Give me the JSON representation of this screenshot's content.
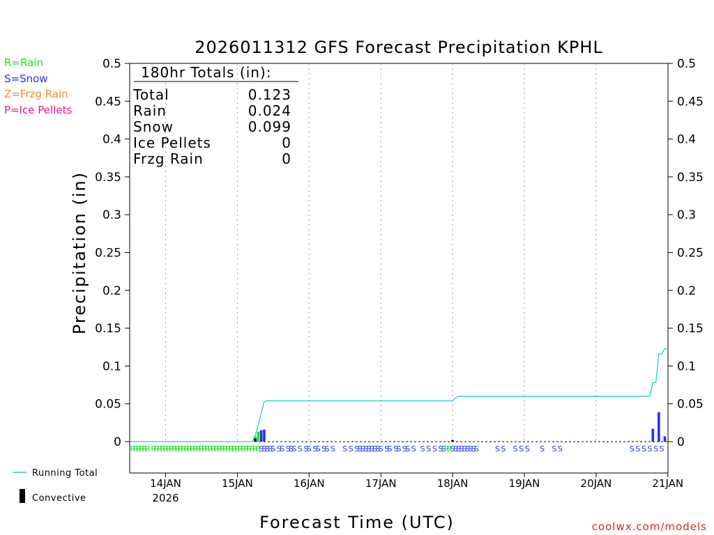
{
  "chart_data": {
    "type": "line",
    "title": "2026011312 GFS Forecast Precipitation KPHL",
    "ylabel": "Precipitation (in)",
    "xlabel": "Forecast Time (UTC)",
    "ylim": [
      0,
      0.5
    ],
    "y_ticks": [
      "0",
      "0.05",
      "0.1",
      "0.15",
      "0.2",
      "0.25",
      "0.3",
      "0.35",
      "0.4",
      "0.45",
      "0.5"
    ],
    "x_ticks": [
      "14JAN",
      "15JAN",
      "16JAN",
      "17JAN",
      "18JAN",
      "19JAN",
      "20JAN",
      "21JAN"
    ],
    "x_tick_year": "2026",
    "grid": true,
    "legend_left": {
      "rain": "R=Rain",
      "snow": "S=Snow",
      "frzg_rain": "Z=Frzg Rain",
      "ice_pellets": "P=Ice Pellets"
    },
    "legend_bottom": {
      "running_total": "Running Total",
      "convective": "Convective"
    },
    "totals_box": {
      "heading": "180hr Totals (in):",
      "rows": [
        {
          "label": "Total",
          "value": "0.123"
        },
        {
          "label": "Rain",
          "value": "0.024"
        },
        {
          "label": "Snow",
          "value": "0.099"
        },
        {
          "label": "Ice Pellets",
          "value": "0"
        },
        {
          "label": "Frzg Rain",
          "value": "0"
        }
      ]
    },
    "running_total": {
      "x_hours": [
        0,
        41,
        42,
        43,
        44,
        45,
        46,
        47,
        48,
        108,
        109,
        110,
        174,
        175,
        176,
        177,
        178,
        179,
        180
      ],
      "y": [
        0,
        0,
        0.009,
        0.022,
        0.038,
        0.053,
        0.054,
        0.054,
        0.054,
        0.054,
        0.058,
        0.06,
        0.06,
        0.078,
        0.078,
        0.116,
        0.116,
        0.123,
        0.123
      ]
    },
    "bars": [
      {
        "x_hours": 42,
        "value": 0.007,
        "ptype": "rain"
      },
      {
        "x_hours": 43,
        "value": 0.013,
        "ptype": "rain"
      },
      {
        "x_hours": 44,
        "value": 0.015,
        "ptype": "snow"
      },
      {
        "x_hours": 45,
        "value": 0.016,
        "ptype": "snow"
      },
      {
        "x_hours": 175,
        "value": 0.017,
        "ptype": "snow"
      },
      {
        "x_hours": 177,
        "value": 0.039,
        "ptype": "snow"
      },
      {
        "x_hours": 179,
        "value": 0.007,
        "ptype": "snow"
      }
    ],
    "convective_bars": [
      {
        "x_hours": 42,
        "value": 0.004
      },
      {
        "x_hours": 108,
        "value": 0.002
      }
    ],
    "ptype_strip": {
      "hours": [
        1,
        2,
        3,
        4,
        5,
        6,
        8,
        9,
        10,
        11,
        12,
        13,
        14,
        15,
        16,
        17,
        18,
        19,
        20,
        21,
        22,
        23,
        24,
        25,
        26,
        27,
        28,
        29,
        30,
        31,
        32,
        33,
        34,
        35,
        36,
        37,
        38,
        39,
        40,
        41,
        42,
        43,
        44,
        45,
        46,
        47,
        48,
        50,
        51,
        53,
        54,
        55,
        57,
        59,
        60,
        62,
        63,
        65,
        66,
        68,
        72,
        74,
        76,
        77,
        78,
        79,
        80,
        81,
        82,
        83,
        84,
        86,
        87,
        89,
        90,
        92,
        93,
        95,
        98,
        100,
        102,
        104,
        105,
        106,
        107,
        108,
        109,
        110,
        111,
        112,
        113,
        114,
        115,
        116,
        123,
        125,
        129,
        131,
        133,
        138,
        142,
        144,
        168,
        170,
        172,
        174,
        176,
        178
      ],
      "types": [
        "R",
        "R",
        "R",
        "R",
        "R",
        "R",
        "R",
        "R",
        "R",
        "R",
        "R",
        "R",
        "R",
        "R",
        "R",
        "R",
        "R",
        "R",
        "R",
        "R",
        "R",
        "R",
        "R",
        "R",
        "R",
        "R",
        "R",
        "R",
        "R",
        "R",
        "R",
        "R",
        "R",
        "R",
        "R",
        "R",
        "R",
        "R",
        "R",
        "R",
        "R",
        "R",
        "S",
        "S",
        "S",
        "S",
        "S",
        "S",
        "S",
        "S",
        "S",
        "S",
        "S",
        "S",
        "S",
        "S",
        "S",
        "S",
        "S",
        "S",
        "S",
        "S",
        "S",
        "S",
        "S",
        "S",
        "S",
        "S",
        "S",
        "S",
        "S",
        "S",
        "S",
        "S",
        "S",
        "S",
        "S",
        "S",
        "S",
        "S",
        "S",
        "S",
        "S",
        "R",
        "R",
        "S",
        "S",
        "S",
        "S",
        "S",
        "S",
        "S",
        "S",
        "S",
        "S",
        "S",
        "S",
        "S",
        "S",
        "S",
        "S",
        "S",
        "S",
        "S",
        "S",
        "S",
        "S",
        "S"
      ]
    },
    "colors": {
      "rain": "#22dd22",
      "snow": "#2233ee",
      "frzg_rain": "#ee8833",
      "ice_pellets": "#ee1199",
      "running_total": "#22cccc",
      "convective": "#000000",
      "watermark": "#dd2222"
    }
  },
  "watermark": "coolwx.com/models"
}
